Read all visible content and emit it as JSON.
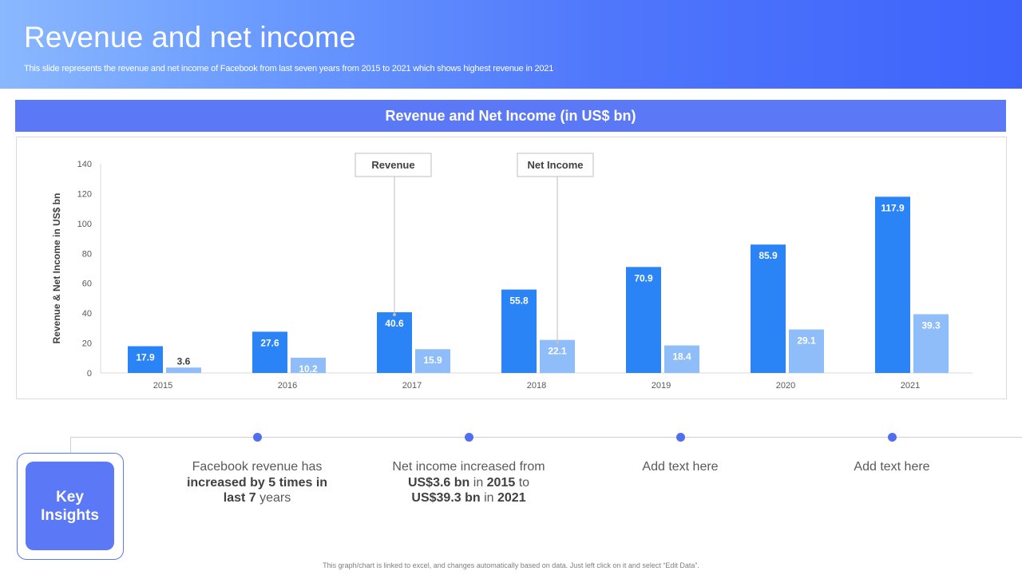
{
  "header": {
    "title": "Revenue and net income",
    "subtitle": "This slide represents the revenue and net income of Facebook from last seven years from 2015 to 2021 which shows highest revenue in 2021"
  },
  "chart_banner": "Revenue and Net Income (in US$ bn)",
  "colors": {
    "revenue": "#2a84f5",
    "net_income": "#8fbdf9",
    "accent": "#5b79f7"
  },
  "chart_data": {
    "type": "bar",
    "categories": [
      "2015",
      "2016",
      "2017",
      "2018",
      "2019",
      "2020",
      "2021"
    ],
    "series": [
      {
        "name": "Revenue",
        "values": [
          17.9,
          27.6,
          40.6,
          55.8,
          70.9,
          85.9,
          117.9
        ]
      },
      {
        "name": "Net Income",
        "values": [
          3.6,
          10.2,
          15.9,
          22.1,
          18.4,
          29.1,
          39.3
        ]
      }
    ],
    "ylabel": "Revenue & Net Income in US$ bn",
    "xlabel": "",
    "ylim": [
      0,
      140
    ],
    "yticks": [
      0,
      20,
      40,
      60,
      80,
      100,
      120,
      140
    ],
    "grid": false,
    "legend": "callouts"
  },
  "insights": {
    "key_label": "Key Insights",
    "items": [
      {
        "lines": [
          [
            {
              "t": "Facebook revenue has",
              "b": false
            }
          ],
          [
            {
              "t": "increased by 5 times in",
              "b": true
            }
          ],
          [
            {
              "t": "last 7",
              "b": true
            },
            {
              "t": " years",
              "b": false
            }
          ]
        ]
      },
      {
        "lines": [
          [
            {
              "t": "Net income increased from",
              "b": false
            }
          ],
          [
            {
              "t": "US$3.6 bn",
              "b": true
            },
            {
              "t": " in ",
              "b": false
            },
            {
              "t": "2015",
              "b": true
            },
            {
              "t": " to",
              "b": false
            }
          ],
          [
            {
              "t": "US$39.3 bn",
              "b": true
            },
            {
              "t": " in ",
              "b": false
            },
            {
              "t": "2021",
              "b": true
            }
          ]
        ]
      },
      {
        "lines": [
          [
            {
              "t": "Add text here",
              "b": false
            }
          ]
        ]
      },
      {
        "lines": [
          [
            {
              "t": "Add text here",
              "b": false
            }
          ]
        ]
      }
    ]
  },
  "footnote": "This graph/chart is linked to excel, and changes automatically based on data. Just left click on it and select “Edit Data”."
}
